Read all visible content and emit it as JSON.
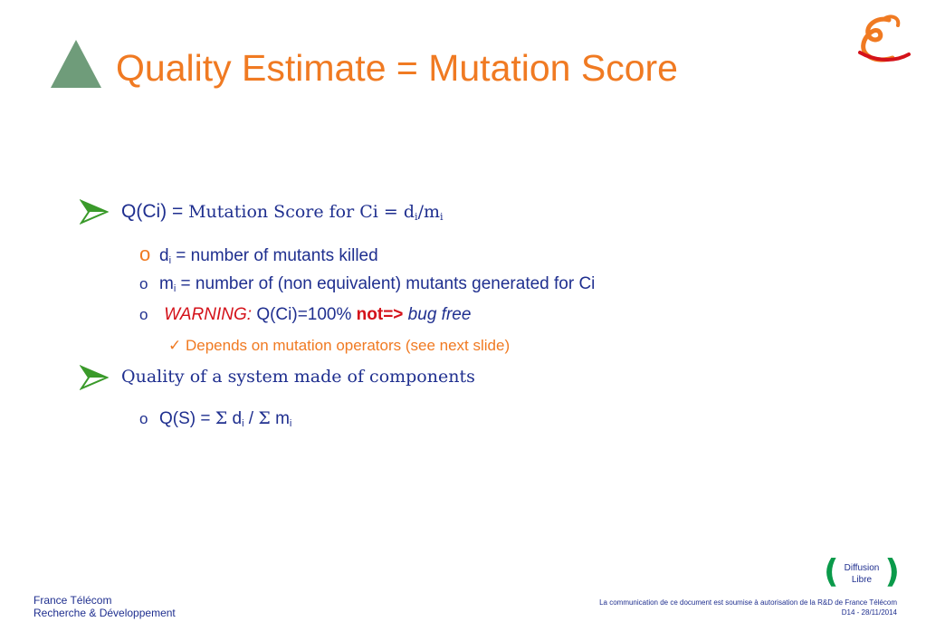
{
  "slide": {
    "title": "Quality Estimate = Mutation Score"
  },
  "items": {
    "q_ci": {
      "lead": "Q(Ci) = ",
      "desc": "Mutation Score for Ci = ",
      "d": "d",
      "d_sub": "i",
      "slash": "/m",
      "m_sub": "i"
    },
    "d_line": {
      "bullet": "o",
      "var": "d",
      "sub": "i",
      "text": " = number of  mutants killed"
    },
    "m_line": {
      "bullet": "o",
      "var": "m",
      "sub": "i",
      "text": " = number of (non equivalent) mutants generated for Ci"
    },
    "warning_line": {
      "bullet": "o",
      "warning": "WARNING:",
      "expr": " Q(Ci)=100% ",
      "not": "not=>",
      "tail": " bug free"
    },
    "depends_line": {
      "check": "✓",
      "text": "Depends on mutation operators (see next slide)"
    },
    "quality_system": "Quality of a system made of components",
    "qs_line": {
      "bullet": "o",
      "lead": "Q(S) = ",
      "sigma1": "Σ",
      "d": " d",
      "d_sub": "i",
      "slash": " / ",
      "sigma2": "Σ",
      "m": " m",
      "m_sub": "i"
    }
  },
  "footer": {
    "org_line1": "France Télécom",
    "org_line2": "Recherche & Développement",
    "notice": "La communication de ce document est soumise à autorisation de la R&D de France Télécom",
    "doc_ref": "D14 - 28/11/2014",
    "diffusion_line1": "Diffusion",
    "diffusion_line2": "Libre"
  },
  "colors": {
    "accent": "#f07a22",
    "text": "#1f2f8f",
    "warning": "#d4121a",
    "triangle": "#6f9c7a",
    "diffusion": "#0a9a4a"
  }
}
